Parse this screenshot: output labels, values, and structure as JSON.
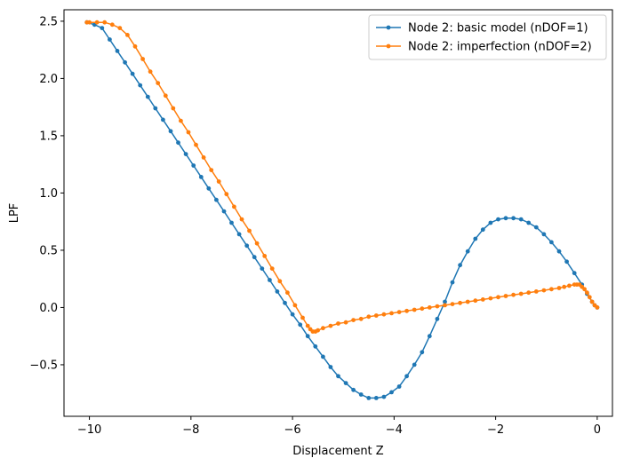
{
  "chart_data": {
    "type": "line",
    "title": "",
    "xlabel": "Displacement Z",
    "ylabel": "LPF",
    "xlim": [
      -10.5,
      0.3
    ],
    "ylim": [
      -0.95,
      2.6
    ],
    "xticks": [
      -10,
      -8,
      -6,
      -4,
      -2,
      0
    ],
    "yticks": [
      -0.5,
      0.0,
      0.5,
      1.0,
      1.5,
      2.0,
      2.5
    ],
    "xtick_labels": [
      "−10",
      "−8",
      "−6",
      "−4",
      "−2",
      "0"
    ],
    "ytick_labels": [
      "−0.5",
      "0.0",
      "0.5",
      "1.0",
      "1.5",
      "2.0",
      "2.5"
    ],
    "grid": false,
    "legend_position": "top-right",
    "series": [
      {
        "name": "Node 2: basic model (nDOF=1)",
        "color": "#1f77b4",
        "x": [
          0,
          -0.05,
          -0.1,
          -0.2,
          -0.3,
          -0.45,
          -0.6,
          -0.75,
          -0.9,
          -1.05,
          -1.2,
          -1.35,
          -1.5,
          -1.65,
          -1.8,
          -1.95,
          -2.1,
          -2.25,
          -2.4,
          -2.55,
          -2.7,
          -2.85,
          -3.0,
          -3.15,
          -3.3,
          -3.45,
          -3.6,
          -3.75,
          -3.9,
          -4.05,
          -4.2,
          -4.35,
          -4.5,
          -4.65,
          -4.8,
          -4.95,
          -5.1,
          -5.25,
          -5.4,
          -5.55,
          -5.7,
          -5.85,
          -6.0,
          -6.15,
          -6.3,
          -6.45,
          -6.6,
          -6.75,
          -6.9,
          -7.05,
          -7.2,
          -7.35,
          -7.5,
          -7.65,
          -7.8,
          -7.95,
          -8.1,
          -8.25,
          -8.4,
          -8.55,
          -8.7,
          -8.85,
          -9.0,
          -9.15,
          -9.3,
          -9.45,
          -9.6,
          -9.75,
          -9.9,
          -10.05
        ],
        "y": [
          0.0,
          0.02,
          0.05,
          0.12,
          0.2,
          0.3,
          0.4,
          0.49,
          0.57,
          0.64,
          0.7,
          0.74,
          0.77,
          0.78,
          0.78,
          0.77,
          0.74,
          0.68,
          0.6,
          0.49,
          0.37,
          0.22,
          0.05,
          -0.1,
          -0.25,
          -0.39,
          -0.5,
          -0.6,
          -0.69,
          -0.74,
          -0.78,
          -0.79,
          -0.79,
          -0.76,
          -0.72,
          -0.66,
          -0.6,
          -0.52,
          -0.43,
          -0.34,
          -0.25,
          -0.15,
          -0.06,
          0.04,
          0.14,
          0.24,
          0.34,
          0.44,
          0.54,
          0.64,
          0.74,
          0.84,
          0.94,
          1.04,
          1.14,
          1.24,
          1.34,
          1.44,
          1.54,
          1.64,
          1.74,
          1.84,
          1.94,
          2.04,
          2.14,
          2.24,
          2.34,
          2.44,
          2.47,
          2.49
        ]
      },
      {
        "name": "Node 2: imperfection (nDOF=2)",
        "color": "#ff7f0e",
        "x": [
          0,
          -0.05,
          -0.1,
          -0.15,
          -0.2,
          -0.25,
          -0.3,
          -0.35,
          -0.4,
          -0.45,
          -0.55,
          -0.65,
          -0.75,
          -0.9,
          -1.05,
          -1.2,
          -1.35,
          -1.5,
          -1.65,
          -1.8,
          -1.95,
          -2.1,
          -2.25,
          -2.4,
          -2.55,
          -2.7,
          -2.85,
          -3.0,
          -3.15,
          -3.3,
          -3.45,
          -3.6,
          -3.75,
          -3.9,
          -4.05,
          -4.2,
          -4.35,
          -4.5,
          -4.65,
          -4.8,
          -4.95,
          -5.1,
          -5.25,
          -5.4,
          -5.5,
          -5.55,
          -5.6,
          -5.65,
          -5.7,
          -5.8,
          -5.95,
          -6.1,
          -6.25,
          -6.4,
          -6.55,
          -6.7,
          -6.85,
          -7.0,
          -7.15,
          -7.3,
          -7.45,
          -7.6,
          -7.75,
          -7.9,
          -8.05,
          -8.2,
          -8.35,
          -8.5,
          -8.65,
          -8.8,
          -8.95,
          -9.1,
          -9.25,
          -9.4,
          -9.55,
          -9.7,
          -9.85,
          -10.0,
          -10.05
        ],
        "y": [
          0.0,
          0.02,
          0.05,
          0.09,
          0.13,
          0.16,
          0.18,
          0.2,
          0.2,
          0.2,
          0.19,
          0.18,
          0.17,
          0.16,
          0.15,
          0.14,
          0.13,
          0.12,
          0.11,
          0.1,
          0.09,
          0.08,
          0.07,
          0.06,
          0.05,
          0.04,
          0.03,
          0.02,
          0.01,
          0.0,
          -0.01,
          -0.02,
          -0.03,
          -0.04,
          -0.05,
          -0.06,
          -0.07,
          -0.08,
          -0.1,
          -0.11,
          -0.13,
          -0.14,
          -0.16,
          -0.18,
          -0.2,
          -0.21,
          -0.21,
          -0.19,
          -0.16,
          -0.09,
          0.02,
          0.13,
          0.23,
          0.34,
          0.45,
          0.56,
          0.67,
          0.77,
          0.88,
          0.99,
          1.1,
          1.2,
          1.31,
          1.42,
          1.53,
          1.63,
          1.74,
          1.85,
          1.96,
          2.06,
          2.17,
          2.28,
          2.38,
          2.44,
          2.47,
          2.49,
          2.49,
          2.49,
          2.49
        ]
      }
    ]
  }
}
